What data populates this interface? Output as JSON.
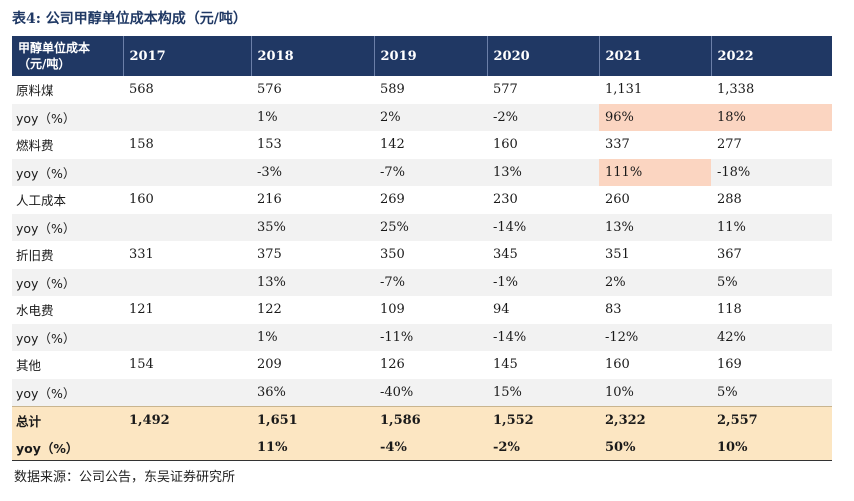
{
  "caption": {
    "label": "表4:",
    "title": "公司甲醇单位成本构成（元/吨）"
  },
  "table": {
    "header_first_line1": "甲醇单位成本",
    "header_first_line2": "（元/吨）",
    "years": [
      "2017",
      "2018",
      "2019",
      "2020",
      "2021",
      "2022"
    ],
    "rows": [
      {
        "label": "原料煤",
        "values": [
          "568",
          "576",
          "589",
          "577",
          "1,131",
          "1,338"
        ]
      },
      {
        "label": "yoy（%）",
        "values": [
          "",
          "1%",
          "2%",
          "-2%",
          "96%",
          "18%"
        ]
      },
      {
        "label": "燃料费",
        "values": [
          "158",
          "153",
          "142",
          "160",
          "337",
          "277"
        ]
      },
      {
        "label": "yoy（%）",
        "values": [
          "",
          "-3%",
          "-7%",
          "13%",
          "111%",
          "-18%"
        ]
      },
      {
        "label": "人工成本",
        "values": [
          "160",
          "216",
          "269",
          "230",
          "260",
          "288"
        ]
      },
      {
        "label": "yoy（%）",
        "values": [
          "",
          "35%",
          "25%",
          "-14%",
          "13%",
          "11%"
        ]
      },
      {
        "label": "折旧费",
        "values": [
          "331",
          "375",
          "350",
          "345",
          "351",
          "367"
        ]
      },
      {
        "label": "yoy（%）",
        "values": [
          "",
          "13%",
          "-7%",
          "-1%",
          "2%",
          "5%"
        ]
      },
      {
        "label": "水电费",
        "values": [
          "121",
          "122",
          "109",
          "94",
          "83",
          "118"
        ]
      },
      {
        "label": "yoy（%）",
        "values": [
          "",
          "1%",
          "-11%",
          "-14%",
          "-12%",
          "42%"
        ]
      },
      {
        "label": "其他",
        "values": [
          "154",
          "209",
          "126",
          "145",
          "160",
          "169"
        ]
      },
      {
        "label": "yoy（%）",
        "values": [
          "",
          "36%",
          "-40%",
          "15%",
          "10%",
          "5%"
        ]
      },
      {
        "label": "总计",
        "values": [
          "1,492",
          "1,651",
          "1,586",
          "1,552",
          "2,322",
          "2,557"
        ]
      },
      {
        "label": "yoy（%）",
        "values": [
          "",
          "11%",
          "-4%",
          "-2%",
          "50%",
          "10%"
        ]
      }
    ],
    "highlight_color": "#fbd5c1",
    "header_color": "#203864",
    "total_color": "#fce6c2"
  },
  "source": "数据来源：公司公告，东吴证券研究所"
}
